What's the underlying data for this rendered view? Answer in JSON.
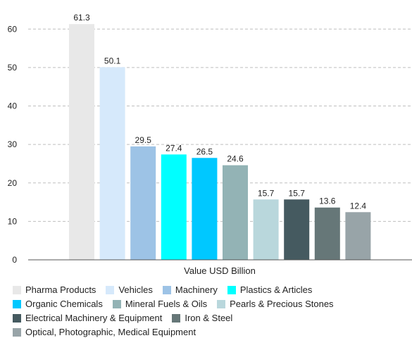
{
  "chart_data": {
    "type": "bar",
    "categories": [
      "Pharma Products",
      "Vehicles",
      "Machinery",
      "Plastics & Articles",
      "Organic Chemicals",
      "Mineral Fuels & Oils",
      "Pearls & Precious Stones",
      "Electrical Machinery & Equipment",
      "Iron & Steel",
      "Optical, Photographic, Medical Equipment"
    ],
    "values": [
      61.3,
      50.1,
      29.5,
      27.4,
      26.5,
      24.6,
      15.7,
      15.7,
      13.6,
      12.4
    ],
    "colors": [
      "#e8e8e8",
      "#d6e9fb",
      "#9dc3e6",
      "#00ffff",
      "#00c8ff",
      "#93b3b5",
      "#b9d7dc",
      "#455a60",
      "#667778",
      "#98a4a8"
    ],
    "xlabel": "Value USD Billion",
    "ylabel": "",
    "ylim": [
      0,
      65
    ],
    "yticks": [
      0,
      10,
      20,
      30,
      40,
      50,
      60
    ],
    "grid": true,
    "legend_position": "bottom"
  }
}
